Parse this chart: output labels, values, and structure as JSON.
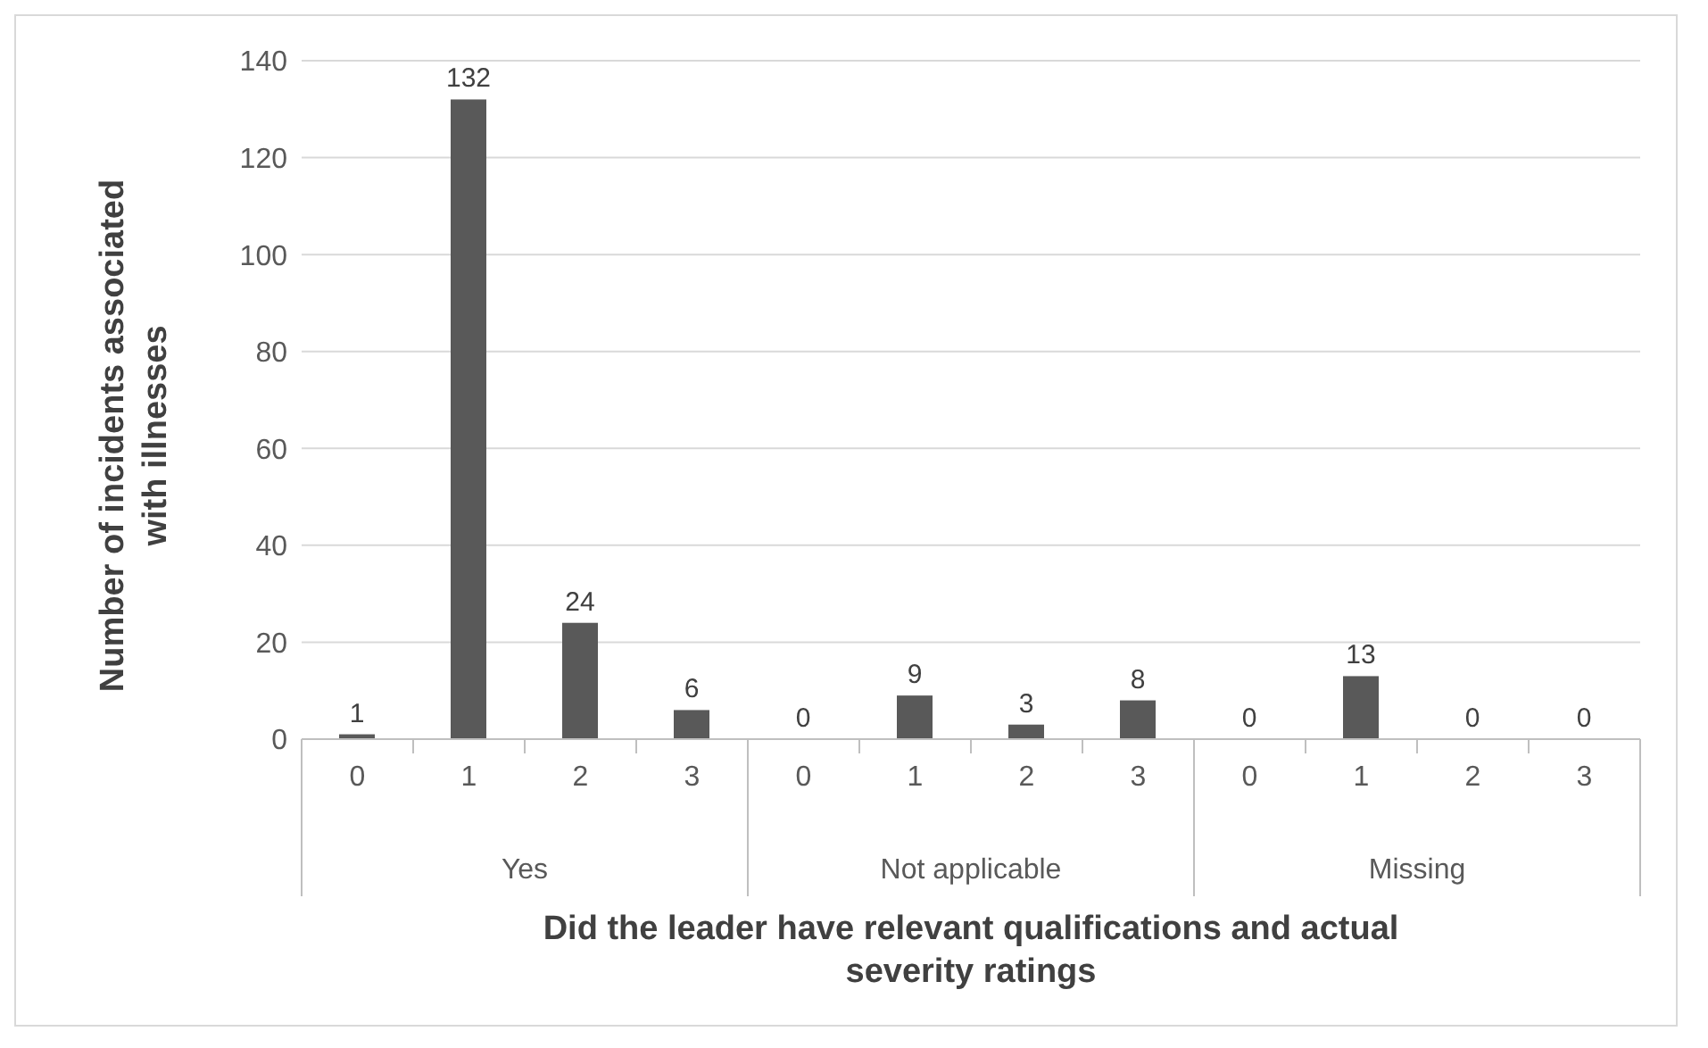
{
  "chart_data": {
    "type": "bar",
    "xlabel": "Did the leader have relevant qualifications and actual severity ratings",
    "ylabel": "Number of incidents associated with illnesses",
    "categories": [
      "0",
      "1",
      "2",
      "3",
      "0",
      "1",
      "2",
      "3",
      "0",
      "1",
      "2",
      "3"
    ],
    "values": [
      1,
      132,
      24,
      6,
      0,
      9,
      3,
      8,
      0,
      13,
      0,
      0
    ],
    "color": "#595959",
    "annotations": [
      "Yes",
      "Not applicable",
      "Missing"
    ],
    "ylim": [
      0,
      140
    ],
    "yticks": [
      0,
      20,
      40,
      60,
      80,
      100,
      120,
      140
    ],
    "grid": "y",
    "data_labels": true
  }
}
